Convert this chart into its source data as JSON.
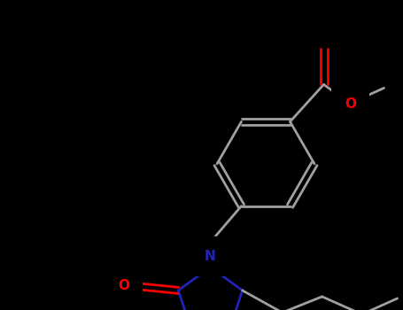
{
  "bg_color": "#000000",
  "bond_color": "#a0a0a0",
  "n_color": "#2222bb",
  "o_color": "#ff0000",
  "bond_lw": 2.0,
  "figsize": [
    4.55,
    3.5
  ],
  "dpi": 100,
  "xlim": [
    0,
    455
  ],
  "ylim": [
    0,
    350
  ],
  "font_size": 11
}
